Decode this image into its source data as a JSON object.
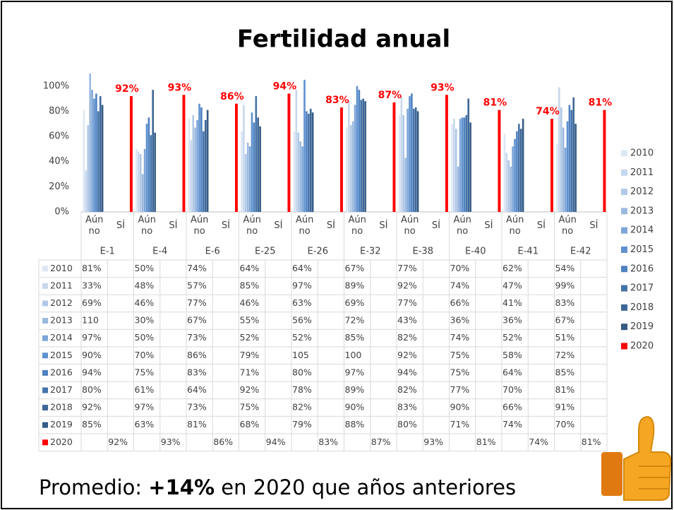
{
  "chart_data": {
    "type": "bar",
    "title": "Fertilidad anual",
    "groups": [
      "E-1",
      "E-4",
      "E-6",
      "E-25",
      "E-26",
      "E-32",
      "E-38",
      "E-40",
      "E-41",
      "E-42"
    ],
    "subcategories": [
      "Aún no",
      "SÍ"
    ],
    "ylim": [
      0,
      110
    ],
    "yticks": [
      {
        "value": 0,
        "label": "0%"
      },
      {
        "value": 20,
        "label": "20%"
      },
      {
        "value": 40,
        "label": "40%"
      },
      {
        "value": 60,
        "label": "60%"
      },
      {
        "value": 80,
        "label": "80%"
      },
      {
        "value": 100,
        "label": "100%"
      }
    ],
    "grid": false,
    "legend": "right",
    "series": [
      {
        "name": "2010",
        "color": "#dde7f4",
        "values": [
          81,
          50,
          74,
          64,
          64,
          67,
          77,
          70,
          62,
          54
        ],
        "value_labels": [
          "81%",
          "50%",
          "74%",
          "64%",
          "64%",
          "67%",
          "77%",
          "70%",
          "62%",
          "54%"
        ]
      },
      {
        "name": "2011",
        "color": "#c7d7ed",
        "values": [
          33,
          48,
          57,
          85,
          97,
          89,
          92,
          74,
          47,
          99
        ],
        "value_labels": [
          "33%",
          "48%",
          "57%",
          "85%",
          "97%",
          "89%",
          "92%",
          "74%",
          "47%",
          "99%"
        ]
      },
      {
        "name": "2012",
        "color": "#b1c8e6",
        "values": [
          69,
          46,
          77,
          46,
          63,
          69,
          77,
          66,
          41,
          83
        ],
        "value_labels": [
          "69%",
          "46%",
          "77%",
          "46%",
          "63%",
          "69%",
          "77%",
          "66%",
          "41%",
          "83%"
        ]
      },
      {
        "name": "2013",
        "color": "#9bb9df",
        "values": [
          110,
          30,
          67,
          55,
          56,
          72,
          43,
          36,
          36,
          67
        ],
        "value_labels": [
          "110",
          "30%",
          "67%",
          "55%",
          "56%",
          "72%",
          "43%",
          "36%",
          "36%",
          "67%"
        ]
      },
      {
        "name": "2014",
        "color": "#7ea6d8",
        "values": [
          97,
          50,
          73,
          52,
          52,
          85,
          82,
          74,
          52,
          51
        ],
        "value_labels": [
          "97%",
          "50%",
          "73%",
          "52%",
          "52%",
          "85%",
          "82%",
          "74%",
          "52%",
          "51%"
        ]
      },
      {
        "name": "2015",
        "color": "#5f91cf",
        "values": [
          90,
          70,
          86,
          79,
          105,
          100,
          92,
          75,
          58,
          72
        ],
        "value_labels": [
          "90%",
          "70%",
          "86%",
          "79%",
          "105",
          "100",
          "92%",
          "75%",
          "58%",
          "72%"
        ]
      },
      {
        "name": "2016",
        "color": "#4f82c0",
        "values": [
          94,
          75,
          83,
          71,
          80,
          97,
          94,
          75,
          64,
          85
        ],
        "value_labels": [
          "94%",
          "75%",
          "83%",
          "71%",
          "80%",
          "97%",
          "94%",
          "75%",
          "64%",
          "85%"
        ]
      },
      {
        "name": "2017",
        "color": "#4473aa",
        "values": [
          80,
          61,
          64,
          92,
          78,
          89,
          82,
          77,
          70,
          81
        ],
        "value_labels": [
          "80%",
          "61%",
          "64%",
          "92%",
          "78%",
          "89%",
          "82%",
          "77%",
          "70%",
          "81%"
        ]
      },
      {
        "name": "2018",
        "color": "#3d6797",
        "values": [
          92,
          97,
          73,
          75,
          82,
          90,
          83,
          90,
          66,
          91
        ],
        "value_labels": [
          "92%",
          "97%",
          "73%",
          "75%",
          "82%",
          "90%",
          "83%",
          "90%",
          "66%",
          "91%"
        ]
      },
      {
        "name": "2019",
        "color": "#365b85",
        "values": [
          85,
          63,
          81,
          68,
          79,
          88,
          80,
          71,
          74,
          70
        ],
        "value_labels": [
          "85%",
          "63%",
          "81%",
          "68%",
          "79%",
          "88%",
          "80%",
          "71%",
          "74%",
          "70%"
        ]
      },
      {
        "name": "2020",
        "color": "#ff0000",
        "values": [
          92,
          93,
          86,
          94,
          83,
          87,
          93,
          81,
          74,
          81
        ],
        "value_labels": [
          "92%",
          "93%",
          "86%",
          "94%",
          "83%",
          "87%",
          "93%",
          "81%",
          "74%",
          "81%"
        ]
      }
    ],
    "annotation": {
      "prefix": "Promedio:",
      "bold": "+14%",
      "suffix": "en 2020 que años anteriores"
    }
  }
}
